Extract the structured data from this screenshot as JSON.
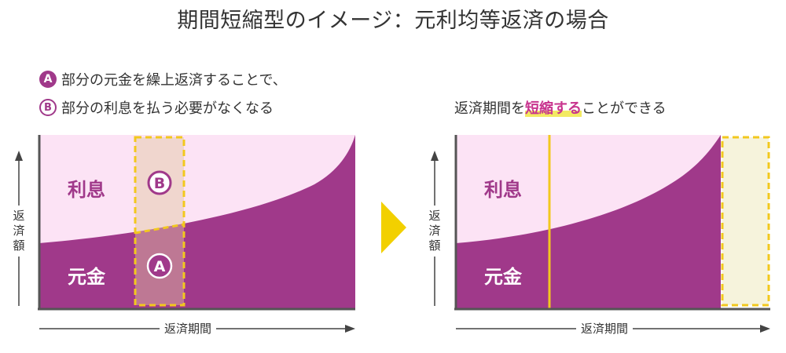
{
  "title": "期間短縮型のイメージ：元利均等返済の場合",
  "legend": {
    "line1_badge": "A",
    "line1_text": "部分の元金を繰上返済することで、",
    "line2_badge": "B",
    "line2_text": "部分の利息を払う必要がなくなる"
  },
  "result": {
    "prefix": "返済期間を",
    "highlight": "短縮する",
    "suffix": "ことができる"
  },
  "left_chart": {
    "interest_label": "利息",
    "principal_label": "元金",
    "marker_b": "B",
    "marker_a": "A",
    "ylabel": "返済額",
    "xlabel": "返済期間"
  },
  "right_chart": {
    "interest_label": "利息",
    "principal_label": "元金",
    "ylabel": "返済額",
    "xlabel": "返済期間"
  },
  "colors": {
    "principal": "#a0398a",
    "interest": "#fce3f5",
    "highlight_box": "#f2c81e",
    "arrow": "#f2d000",
    "text_accent": "#c8348e"
  }
}
